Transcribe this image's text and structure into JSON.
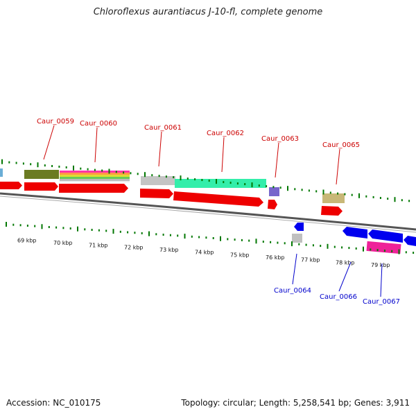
{
  "title": "Chloroflexus aurantiacus J-10-fl, complete genome",
  "footer": {
    "accession": "Accession: NC_010175",
    "stats": "Topology: circular; Length: 5,258,541 bp; Genes: 3,911"
  },
  "colors": {
    "background": "#ffffff",
    "forward_label": "#cc0000",
    "reverse_label": "#0000cc",
    "cds_forward": "#ee0000",
    "cds_reverse": "#0000ee",
    "tick": "#007700",
    "backbone": "#666666"
  },
  "scale_labels": [
    "69 kbp",
    "70 kbp",
    "71 kbp",
    "72 kbp",
    "73 kbp",
    "74 kbp",
    "75 kbp",
    "76 kbp",
    "77 kbp",
    "78 kbp",
    "79 kbp"
  ],
  "gene_labels": {
    "forward": [
      "Caur_0059",
      "Caur_0060",
      "Caur_0061",
      "Caur_0062",
      "Caur_0063",
      "Caur_0065"
    ],
    "reverse": [
      "Caur_0064",
      "Caur_0066",
      "Caur_0067"
    ]
  }
}
